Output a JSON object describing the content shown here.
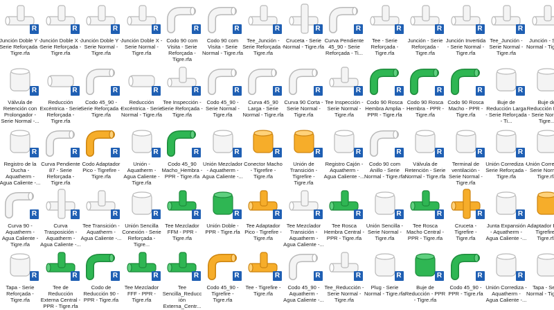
{
  "colors": {
    "green": "#22a34a",
    "orange": "#f0a018",
    "white": "#f2f2f2",
    "badge": "#1f5fb3"
  },
  "badge_letter": "R",
  "items": [
    {
      "label": "Junción Doble Y - Serie Reforçada - Tigre.rfa",
      "icon": "pipe-double-y-junction-icon",
      "color": "white"
    },
    {
      "label": "Junción Doble X - Serie Reforçada - Tigre.rfa",
      "icon": "pipe-double-x-junction-icon",
      "color": "white"
    },
    {
      "label": "Junción Doble Y - Serie Normal - Tigre.rfa",
      "icon": "pipe-double-y-junction-icon",
      "color": "white"
    },
    {
      "label": "Junción Doble X - Serie Normal - Tigre.rfa",
      "icon": "pipe-double-x-junction-icon",
      "color": "white"
    },
    {
      "label": "Codo 90 com Visita - Serie Reforçada - Tigre.rfa",
      "icon": "pipe-elbow-inspection-icon",
      "color": "white"
    },
    {
      "label": "Codo 90 com Visita - Serie Normal - Tigre.rfa",
      "icon": "pipe-elbow-inspection-icon",
      "color": "white"
    },
    {
      "label": "Tee_Junción - Serie Reforçada - Tigre.rfa",
      "icon": "pipe-tee-junction-icon",
      "color": "white"
    },
    {
      "label": "Cruceta - Serie Normal - Tigre.rfa",
      "icon": "pipe-cross-icon",
      "color": "white"
    },
    {
      "label": "Curva Pendiente 45_90 - Serie Reforçada - Ti...",
      "icon": "pipe-curve-icon",
      "color": "white"
    },
    {
      "label": "Tee - Serie Reforçada - Tigre.rfa",
      "icon": "pipe-tee-icon",
      "color": "white"
    },
    {
      "label": "Junción - Serie Reforçada - Tigre.rfa",
      "icon": "pipe-junction-icon",
      "color": "white"
    },
    {
      "label": "Junción Invertida - Serie Normal - Tigre.rfa",
      "icon": "pipe-inverted-junction-icon",
      "color": "white"
    },
    {
      "label": "Tee_Junción - Serie Normal - Tigre.rfa",
      "icon": "pipe-tee-junction-icon",
      "color": "white"
    },
    {
      "label": "Junción - Serie Normal - Tigre.rfa",
      "icon": "pipe-junction-icon",
      "color": "white"
    },
    {
      "label": "Válvula de Retención con Prolongador - Serie Normal -...",
      "icon": "check-valve-icon",
      "color": "white"
    },
    {
      "label": "Reducción Excéntrica - Serie Reforçada - Tigre.rfa",
      "icon": "eccentric-reducer-icon",
      "color": "white"
    },
    {
      "label": "Codo 45_90 - Serie Reforçada - Tigre.rfa",
      "icon": "pipe-elbow-icon",
      "color": "white"
    },
    {
      "label": "Reducción Excéntrica - Serie Normal - Tigre.rfa",
      "icon": "eccentric-reducer-icon",
      "color": "white"
    },
    {
      "label": "Tee Inspección - Serie Reforçada - Tigre.rfa",
      "icon": "pipe-tee-inspection-icon",
      "color": "white"
    },
    {
      "label": "Codo 45_90 - Serie Normal - Tigre.rfa",
      "icon": "pipe-elbow-icon",
      "color": "white"
    },
    {
      "label": "Curva 45_90 Larga - Serie Normal - Tigre.rfa",
      "icon": "long-curve-icon",
      "color": "white"
    },
    {
      "label": "Curva 90 Corta - Serie Normal - Tigre.rfa",
      "icon": "short-curve-icon",
      "color": "white"
    },
    {
      "label": "Tee Inspección - Serie Normal - Tigre.rfa",
      "icon": "pipe-tee-inspection-icon",
      "color": "white"
    },
    {
      "label": "Codo 90 Rosca Hembra Amplia - PPR - Tigre.rfa",
      "icon": "threaded-elbow-icon",
      "color": "green"
    },
    {
      "label": "Codo 90 Rosca Hembra - PPR - Tigre.rfa",
      "icon": "threaded-elbow-icon",
      "color": "green"
    },
    {
      "label": "Codo 90 Rosca Macho - PPR - Tigre.rfa",
      "icon": "threaded-elbow-icon",
      "color": "green"
    },
    {
      "label": "Buje de Reducción Larga - Serie Reforçada - Ti...",
      "icon": "reducing-bushing-icon",
      "color": "white"
    },
    {
      "label": "Buje de Reducción Larga - Serie Normal - Tigre...",
      "icon": "reducing-bushing-icon",
      "color": "white"
    },
    {
      "label": "Registro de la Ducha - Aquatherm - Agua Caliente -...",
      "icon": "shower-valve-icon",
      "color": "white"
    },
    {
      "label": "Curva Pendiente 87 - Serie Reforçada - Tigre.rfa",
      "icon": "pipe-curve-icon",
      "color": "white"
    },
    {
      "label": "Codo Adaptador Pico - Tigrefire - Tigre.rfa",
      "icon": "adapter-elbow-icon",
      "color": "orange"
    },
    {
      "label": "Unión - Aquatherm - Agua Caliente - Tigre.rfa",
      "icon": "union-icon",
      "color": "white"
    },
    {
      "label": "Codo 45_90 Macho_Hembra - PPR - Tigre.rfa",
      "icon": "threaded-elbow-icon",
      "color": "green"
    },
    {
      "label": "Unión Mezclador - Aquatherm - Agua Caliente -...",
      "icon": "mixer-union-icon",
      "color": "white"
    },
    {
      "label": "Conector Macho - Tigrefire - Tigre.rfa",
      "icon": "male-connector-icon",
      "color": "orange"
    },
    {
      "label": "Unión de Transición - Tigrefire - Tigre.rfa",
      "icon": "transition-union-icon",
      "color": "orange"
    },
    {
      "label": "Registro Cajón - Aquatherm - Agua Caliente -...",
      "icon": "valve-box-icon",
      "color": "white"
    },
    {
      "label": "Codo 90 com Anillo - Serie Normal - Tigre.rfa",
      "icon": "ring-elbow-icon",
      "color": "white"
    },
    {
      "label": "Válvula de Retención - Serie Normal - Tigre.rfa",
      "icon": "check-valve-icon",
      "color": "white"
    },
    {
      "label": "Terminal de ventilación - Serie Normal - Tigre.rfa",
      "icon": "vent-terminal-icon",
      "color": "white"
    },
    {
      "label": "Unión Corrediza - Serie Reforçada - Tigre.rfa",
      "icon": "slip-union-icon",
      "color": "white"
    },
    {
      "label": "Unión Corrediza - Serie Normal - Tigre.rfa",
      "icon": "slip-union-icon",
      "color": "white"
    },
    {
      "label": "Curva 90 - Aquatherm - Agua Caliente - Tigre.rfa",
      "icon": "long-curve-icon",
      "color": "white"
    },
    {
      "label": "Curva Trasposición - Aquatherm - Agua Caliente -...",
      "icon": "crossover-curve-icon",
      "color": "white"
    },
    {
      "label": "Tee Transición - Aquatherm - Agua Caliente -...",
      "icon": "pipe-tee-icon",
      "color": "white"
    },
    {
      "label": "Unión Sencilla Conexión - Serie Reforçada - Tigre...",
      "icon": "coupling-icon",
      "color": "white"
    },
    {
      "label": "Tee Mezclador FFM - PPR - Tigre.rfa",
      "icon": "mixer-tee-icon",
      "color": "green"
    },
    {
      "label": "Unión Doble - PPR - Tigre.rfa",
      "icon": "double-union-icon",
      "color": "green"
    },
    {
      "label": "Tee Adaptador Pico - Tigrefire - Tigre.rfa",
      "icon": "adapter-tee-icon",
      "color": "orange"
    },
    {
      "label": "Tee Mezclador Transición - Aquatherm - Agua Caliente -...",
      "icon": "mixer-tee-icon",
      "color": "white"
    },
    {
      "label": "Tee Rosca Hembra Central - PPR - Tigre.rfa",
      "icon": "threaded-tee-icon",
      "color": "green"
    },
    {
      "label": "Unión Sencilla - Serie Normal - Tigre.rfa",
      "icon": "coupling-icon",
      "color": "white"
    },
    {
      "label": "Tee Rosca Macho Central - PPR - Tigre.rfa",
      "icon": "threaded-tee-icon",
      "color": "green"
    },
    {
      "label": "Cruceta - Tigrefire - Tigre.rfa",
      "icon": "pipe-cross-icon",
      "color": "orange"
    },
    {
      "label": "Junta Expansión - Aquatherm - Agua Caliente -...",
      "icon": "expansion-joint-icon",
      "color": "white"
    },
    {
      "label": "Adaptador Pico - Tigrefire - Tigre.rfa",
      "icon": "spigot-adapter-icon",
      "color": "orange"
    },
    {
      "label": "Tapa - Serie Reforçada - Tigre.rfa",
      "icon": "pipe-cap-icon",
      "color": "white"
    },
    {
      "label": "Tee de Reducción Externa Central - PPR - Tigre.rfa",
      "icon": "reducing-tee-icon",
      "color": "green"
    },
    {
      "label": "Codo de Reducción 90 - PPR - Tigre.rfa",
      "icon": "reducing-elbow-icon",
      "color": "green"
    },
    {
      "label": "Tee Mezclador FFF - PPR - Tigre.rfa",
      "icon": "mixer-tee-icon",
      "color": "green"
    },
    {
      "label": "Tee Sencilla_Reducc ión Externa_Centr...",
      "icon": "reducing-tee-icon",
      "color": "green"
    },
    {
      "label": "Codo 45_90 - Tigrefire - Tigre.rfa",
      "icon": "pipe-elbow-icon",
      "color": "orange"
    },
    {
      "label": "Tee - Tigrefire - Tigre.rfa",
      "icon": "pipe-tee-icon",
      "color": "orange"
    },
    {
      "label": "Codo 45_90 - Aquatherm - Agua Caliente -...",
      "icon": "pipe-elbow-icon",
      "color": "white"
    },
    {
      "label": "Tee_Reducción - Serie Normal - Tigre.rfa",
      "icon": "reducing-tee-icon",
      "color": "white"
    },
    {
      "label": "Plug - Serie Normal - Tigre.rfa",
      "icon": "pipe-plug-icon",
      "color": "white"
    },
    {
      "label": "Buje de Reducción - PPR - Tigre.rfa",
      "icon": "reducing-bushing-icon",
      "color": "green"
    },
    {
      "label": "Codo 45_90 - PPR - Tigre.rfa",
      "icon": "pipe-elbow-icon",
      "color": "green"
    },
    {
      "label": "Unión Corrediza - Aquatherm - Agua Caliente -...",
      "icon": "slip-union-icon",
      "color": "white"
    },
    {
      "label": "Tapa - Serie Normal - Tigre.rfa",
      "icon": "pipe-cap-icon",
      "color": "white"
    }
  ]
}
